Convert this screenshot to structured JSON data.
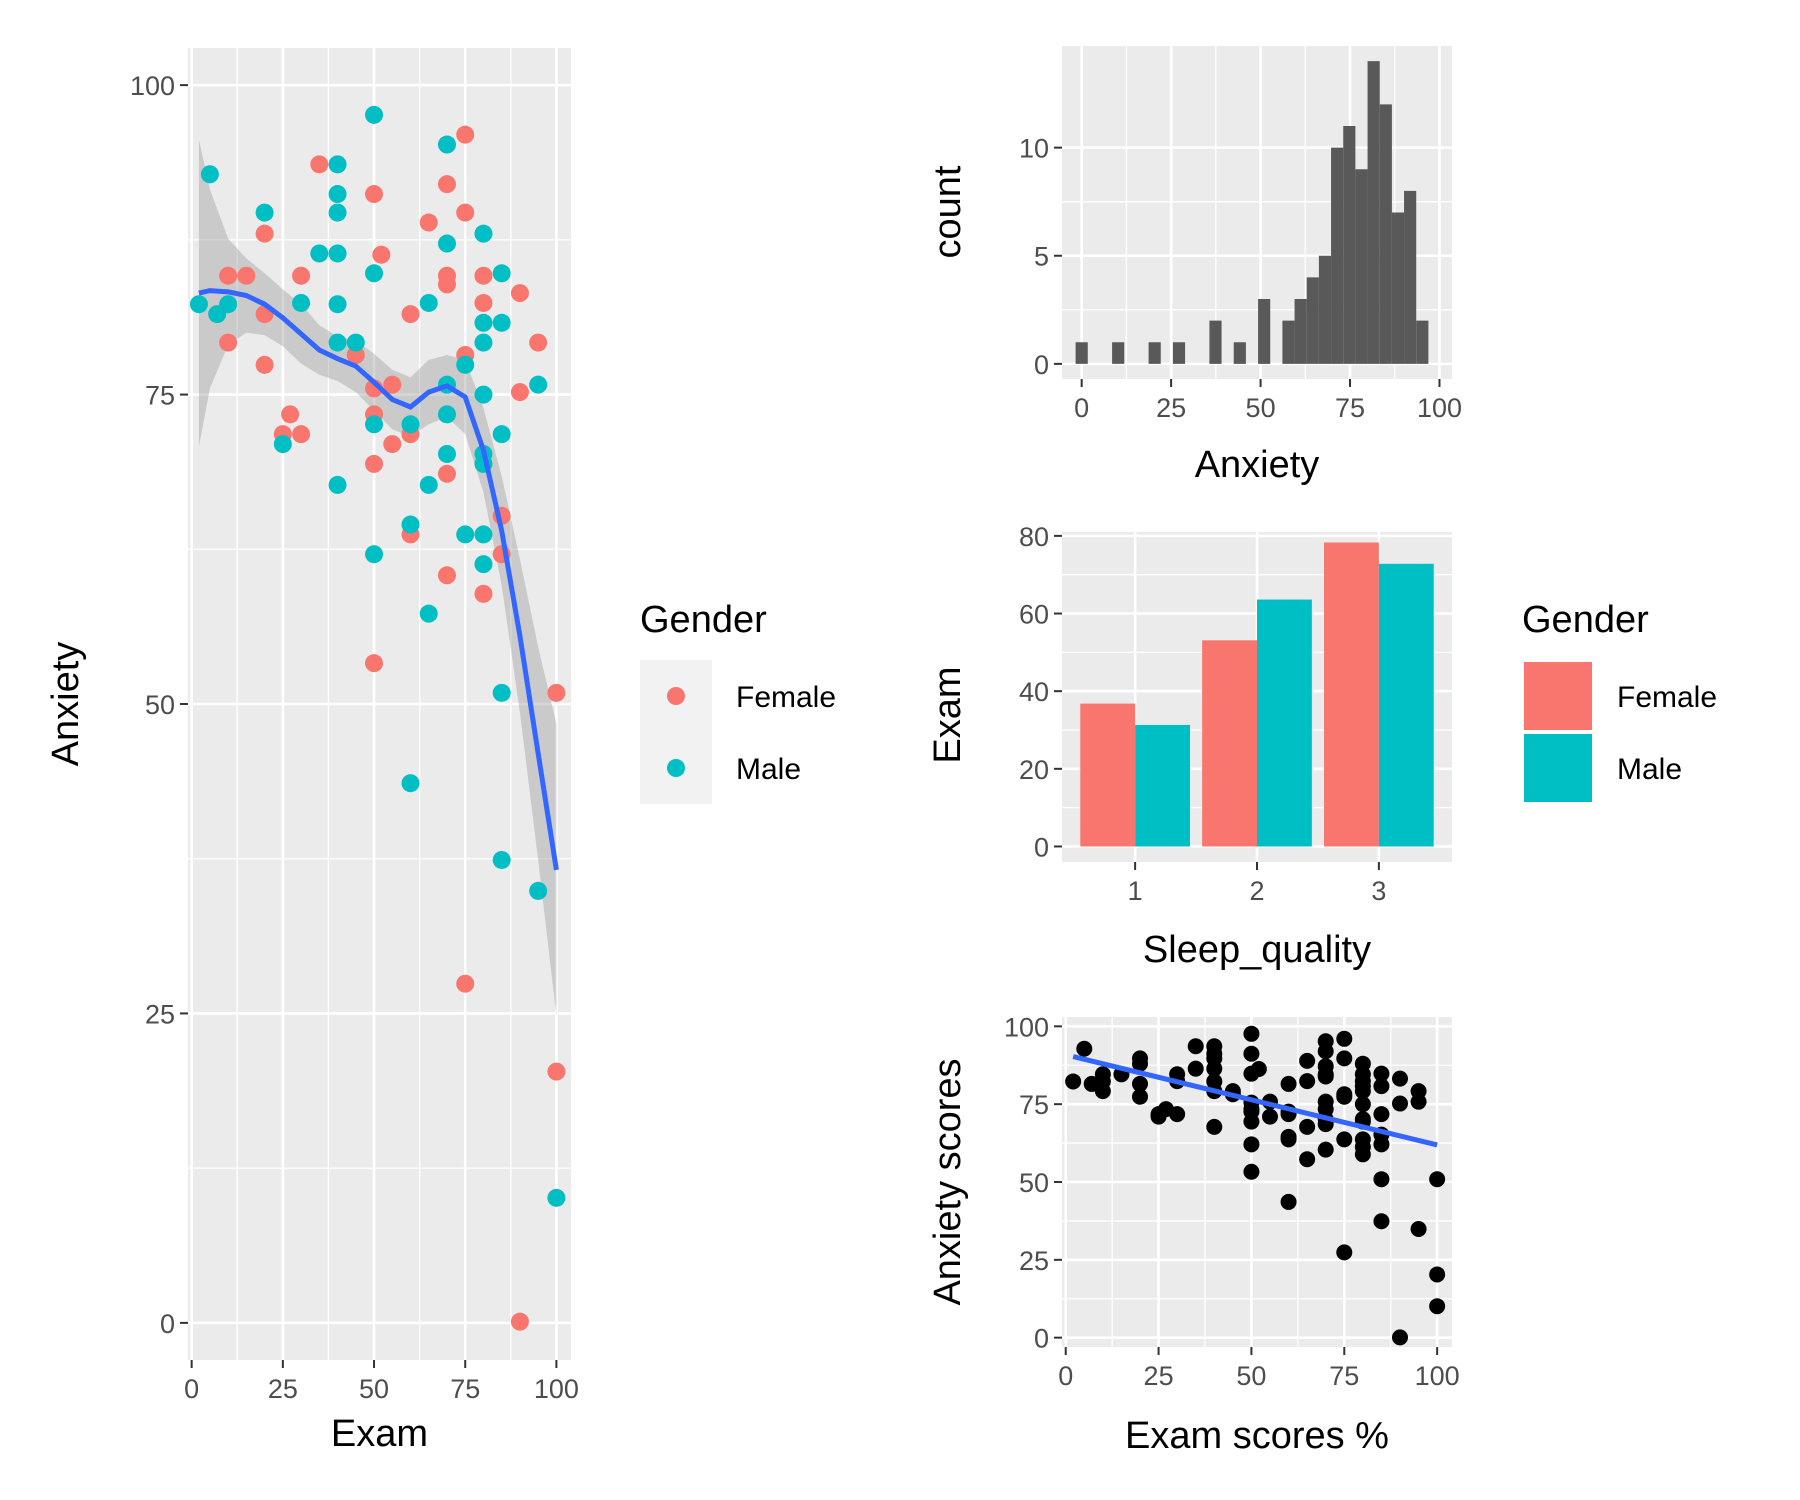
{
  "colors": {
    "female": "#F8766D",
    "male": "#00BFC4",
    "fit_line": "#3366FF",
    "ribbon": "#999999",
    "bar_dark": "#595959",
    "point_black": "#000000"
  },
  "chart_data": [
    {
      "id": "scatter-smooth",
      "type": "scatter",
      "xlabel": "Exam",
      "ylabel": "Anxiety",
      "xlim": [
        -1,
        104
      ],
      "ylim": [
        -3,
        103
      ],
      "x_ticks": [
        0,
        25,
        50,
        75,
        100
      ],
      "y_ticks": [
        0,
        25,
        50,
        75,
        100
      ],
      "grid": true,
      "legend": {
        "title": "Gender",
        "position": "right",
        "entries": [
          "Female",
          "Male"
        ]
      },
      "series": [
        {
          "name": "Female",
          "color_key": "female",
          "points": [
            [
              10,
              84.6
            ],
            [
              15,
              84.6
            ],
            [
              10,
              79.2
            ],
            [
              20,
              88.0
            ],
            [
              20,
              81.5
            ],
            [
              20,
              77.4
            ],
            [
              25,
              71.8
            ],
            [
              27,
              73.4
            ],
            [
              30,
              71.8
            ],
            [
              30,
              84.6
            ],
            [
              35,
              93.6
            ],
            [
              45,
              78.2
            ],
            [
              50,
              91.2
            ],
            [
              52,
              86.3
            ],
            [
              50,
              75.5
            ],
            [
              50,
              73.4
            ],
            [
              50,
              69.4
            ],
            [
              50,
              53.3
            ],
            [
              55,
              75.8
            ],
            [
              55,
              71.0
            ],
            [
              60,
              81.5
            ],
            [
              60,
              71.8
            ],
            [
              60,
              63.7
            ],
            [
              65,
              88.9
            ],
            [
              70,
              92.0
            ],
            [
              70,
              84.6
            ],
            [
              70,
              83.9
            ],
            [
              70,
              68.6
            ],
            [
              70,
              60.4
            ],
            [
              75,
              96.0
            ],
            [
              75,
              89.7
            ],
            [
              75,
              78.2
            ],
            [
              75,
              27.4
            ],
            [
              80,
              84.6
            ],
            [
              80,
              82.4
            ],
            [
              80,
              58.9
            ],
            [
              85,
              65.2
            ],
            [
              85,
              62.1
            ],
            [
              90,
              83.2
            ],
            [
              90,
              75.2
            ],
            [
              90,
              0.1
            ],
            [
              95,
              79.2
            ],
            [
              100,
              50.9
            ],
            [
              100,
              20.3
            ]
          ]
        },
        {
          "name": "Male",
          "color_key": "male",
          "points": [
            [
              2,
              82.3
            ],
            [
              5,
              92.8
            ],
            [
              7,
              81.5
            ],
            [
              10,
              82.3
            ],
            [
              20,
              89.7
            ],
            [
              25,
              71.0
            ],
            [
              30,
              82.4
            ],
            [
              35,
              86.4
            ],
            [
              40,
              93.6
            ],
            [
              40,
              91.2
            ],
            [
              40,
              89.7
            ],
            [
              40,
              86.4
            ],
            [
              40,
              82.3
            ],
            [
              40,
              79.2
            ],
            [
              40,
              67.7
            ],
            [
              45,
              79.2
            ],
            [
              50,
              97.6
            ],
            [
              50,
              84.8
            ],
            [
              50,
              72.6
            ],
            [
              50,
              62.1
            ],
            [
              60,
              72.6
            ],
            [
              60,
              64.5
            ],
            [
              60,
              43.6
            ],
            [
              65,
              82.4
            ],
            [
              65,
              67.7
            ],
            [
              65,
              57.3
            ],
            [
              70,
              95.2
            ],
            [
              70,
              87.2
            ],
            [
              70,
              75.8
            ],
            [
              70,
              73.4
            ],
            [
              70,
              70.2
            ],
            [
              75,
              77.4
            ],
            [
              75,
              63.7
            ],
            [
              80,
              88.0
            ],
            [
              80,
              80.8
            ],
            [
              80,
              79.2
            ],
            [
              80,
              75.0
            ],
            [
              80,
              70.2
            ],
            [
              80,
              69.4
            ],
            [
              80,
              63.7
            ],
            [
              80,
              61.3
            ],
            [
              85,
              84.8
            ],
            [
              85,
              80.8
            ],
            [
              85,
              71.8
            ],
            [
              85,
              50.9
            ],
            [
              85,
              37.4
            ],
            [
              95,
              75.8
            ],
            [
              95,
              34.9
            ],
            [
              100,
              10.1
            ]
          ]
        }
      ],
      "smooth": {
        "color_key": "fit_line",
        "fit": [
          [
            2,
            83.2
          ],
          [
            5,
            83.4
          ],
          [
            10,
            83.3
          ],
          [
            15,
            83.0
          ],
          [
            20,
            82.3
          ],
          [
            25,
            81.2
          ],
          [
            30,
            79.9
          ],
          [
            35,
            78.6
          ],
          [
            40,
            77.9
          ],
          [
            45,
            77.3
          ],
          [
            50,
            76.0
          ],
          [
            55,
            74.6
          ],
          [
            60,
            74.0
          ],
          [
            65,
            75.2
          ],
          [
            70,
            75.7
          ],
          [
            75,
            74.8
          ],
          [
            80,
            70.5
          ],
          [
            85,
            64.0
          ],
          [
            90,
            55.5
          ],
          [
            95,
            46.0
          ],
          [
            100,
            36.6
          ]
        ],
        "lower": [
          [
            2,
            70.8
          ],
          [
            5,
            75.5
          ],
          [
            10,
            79.0
          ],
          [
            15,
            80.0
          ],
          [
            20,
            79.8
          ],
          [
            25,
            78.9
          ],
          [
            30,
            77.5
          ],
          [
            35,
            76.6
          ],
          [
            40,
            76.1
          ],
          [
            45,
            75.2
          ],
          [
            50,
            73.7
          ],
          [
            55,
            72.2
          ],
          [
            60,
            71.6
          ],
          [
            65,
            72.6
          ],
          [
            70,
            73.2
          ],
          [
            75,
            71.8
          ],
          [
            80,
            67.1
          ],
          [
            85,
            59.6
          ],
          [
            90,
            49.3
          ],
          [
            95,
            37.4
          ],
          [
            100,
            24.8
          ]
        ],
        "upper": [
          [
            2,
            95.6
          ],
          [
            5,
            91.6
          ],
          [
            10,
            87.6
          ],
          [
            15,
            86.0
          ],
          [
            20,
            84.8
          ],
          [
            25,
            83.5
          ],
          [
            30,
            82.3
          ],
          [
            35,
            80.6
          ],
          [
            40,
            79.7
          ],
          [
            45,
            79.4
          ],
          [
            50,
            78.3
          ],
          [
            55,
            77.0
          ],
          [
            60,
            76.4
          ],
          [
            65,
            77.8
          ],
          [
            70,
            78.2
          ],
          [
            75,
            77.8
          ],
          [
            80,
            73.9
          ],
          [
            85,
            68.4
          ],
          [
            90,
            61.7
          ],
          [
            95,
            54.6
          ],
          [
            100,
            48.4
          ]
        ]
      }
    },
    {
      "id": "histogram",
      "type": "bar",
      "xlabel": "Anxiety",
      "ylabel": "count",
      "xlim": [
        -5.5,
        103.5
      ],
      "ylim": [
        -0.7,
        14.7
      ],
      "x_ticks": [
        0,
        25,
        50,
        75,
        100
      ],
      "y_ticks": [
        0,
        5,
        10
      ],
      "grid": true,
      "bin_width": 3.4,
      "color_key": "bar_dark",
      "bins": [
        [
          0.0,
          1
        ],
        [
          10.2,
          1
        ],
        [
          20.4,
          1
        ],
        [
          27.2,
          1
        ],
        [
          37.4,
          2
        ],
        [
          44.2,
          1
        ],
        [
          51.0,
          3
        ],
        [
          57.8,
          2
        ],
        [
          61.2,
          3
        ],
        [
          64.6,
          4
        ],
        [
          68.0,
          5
        ],
        [
          71.4,
          10
        ],
        [
          74.8,
          11
        ],
        [
          78.2,
          9
        ],
        [
          81.6,
          14
        ],
        [
          85.0,
          12
        ],
        [
          88.4,
          7
        ],
        [
          91.8,
          8
        ],
        [
          95.2,
          2
        ]
      ]
    },
    {
      "id": "grouped-bar",
      "type": "bar",
      "xlabel": "Sleep_quality",
      "ylabel": "Exam",
      "categories": [
        "1",
        "2",
        "3"
      ],
      "ylim": [
        -4,
        81
      ],
      "y_ticks": [
        0,
        20,
        40,
        60,
        80
      ],
      "grid": true,
      "legend": {
        "title": "Gender",
        "position": "right",
        "entries": [
          "Female",
          "Male"
        ]
      },
      "series": [
        {
          "name": "Female",
          "color_key": "female",
          "values": [
            36.8,
            53.1,
            78.3
          ]
        },
        {
          "name": "Male",
          "color_key": "male",
          "values": [
            31.3,
            63.6,
            72.8
          ]
        }
      ]
    },
    {
      "id": "scatter-lm",
      "type": "scatter",
      "xlabel": "Exam scores %",
      "ylabel": "Anxiety scores",
      "xlim": [
        -1,
        104
      ],
      "ylim": [
        -3,
        103
      ],
      "x_ticks": [
        0,
        25,
        50,
        75,
        100
      ],
      "y_ticks": [
        0,
        25,
        50,
        75,
        100
      ],
      "grid": true,
      "color_key": "point_black",
      "linear_fit": {
        "color_key": "fit_line",
        "x": [
          2,
          100
        ],
        "y": [
          90.3,
          61.9
        ]
      }
    }
  ]
}
